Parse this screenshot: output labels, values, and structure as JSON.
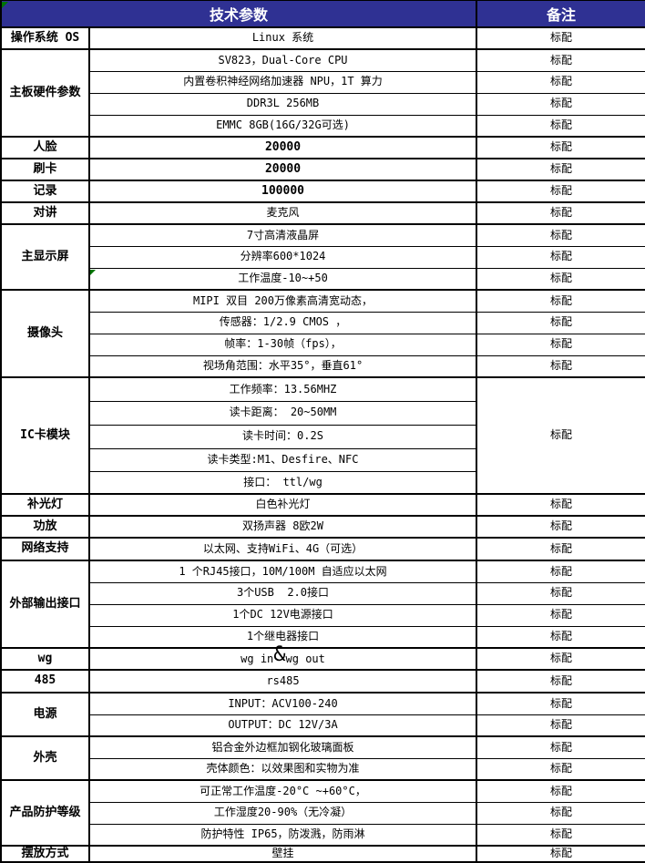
{
  "table": {
    "header": {
      "tech_params": "技术参数",
      "remark": "备注"
    },
    "sections": [
      {
        "category": "操作系统 OS",
        "rows": [
          {
            "value": "Linux 系统",
            "remark": "标配"
          }
        ]
      },
      {
        "category": "主板硬件参数",
        "rows": [
          {
            "value": "SV823，Dual-Core CPU",
            "remark": "标配"
          },
          {
            "value": "内置卷积神经网络加速器 NPU，1T 算力",
            "remark": "标配"
          },
          {
            "value": "DDR3L 256MB",
            "remark": "标配"
          },
          {
            "value": "EMMC 8GB(16G/32G可选)",
            "remark": "标配"
          }
        ]
      },
      {
        "category": "人脸",
        "rows": [
          {
            "value": "20000",
            "remark": "标配"
          }
        ]
      },
      {
        "category": "刷卡",
        "rows": [
          {
            "value": "20000",
            "remark": "标配"
          }
        ]
      },
      {
        "category": "记录",
        "rows": [
          {
            "value": "100000",
            "remark": "标配"
          }
        ]
      },
      {
        "category": "对讲",
        "rows": [
          {
            "value": "麦克风",
            "remark": "标配"
          }
        ]
      },
      {
        "category": "主显示屏",
        "rows": [
          {
            "value": "7寸高清液晶屏",
            "remark": "标配"
          },
          {
            "value": "分辨率600*1024",
            "remark": "标配"
          },
          {
            "value": "工作温度-10~+50",
            "remark": "标配"
          }
        ]
      },
      {
        "category": "摄像头",
        "rows": [
          {
            "value": "MIPI 双目 200万像素高清宽动态，",
            "remark": "标配"
          },
          {
            "value": "传感器：1/2.9 CMOS ，",
            "remark": "标配"
          },
          {
            "value": "帧率：1-30帧（fps），",
            "remark": "标配"
          },
          {
            "value": "视场角范围：水平35°，垂直61°",
            "remark": "标配"
          }
        ]
      },
      {
        "category": "IC卡模块",
        "merged_remark": true,
        "remark": "标配",
        "rows": [
          {
            "value": "工作频率：13.56MHZ"
          },
          {
            "value": "读卡距离： 20~50MM"
          },
          {
            "value": "读卡时间：0.2S"
          },
          {
            "value": "读卡类型:M1、Desfire、NFC"
          },
          {
            "value": "接口： ttl/wg"
          }
        ]
      },
      {
        "category": "补光灯",
        "rows": [
          {
            "value": "白色补光灯",
            "remark": "标配"
          }
        ]
      },
      {
        "category": "功放",
        "rows": [
          {
            "value": "双扬声器 8欧2W",
            "remark": "标配"
          }
        ]
      },
      {
        "category": "网络支持",
        "rows": [
          {
            "value": "以太网、支持WiFi、4G（可选）",
            "remark": "标配"
          }
        ]
      },
      {
        "category": "外部输出接口",
        "rows": [
          {
            "value": "1 个RJ45接口，10M/100M 自适应以太网",
            "remark": "标配"
          },
          {
            "value": "3个USB  2.0接口",
            "remark": "标配"
          },
          {
            "value": "1个DC 12V电源接口",
            "remark": "标配"
          },
          {
            "value": "1个继电器接口",
            "remark": "标配"
          }
        ]
      },
      {
        "category": "wg",
        "rows": [
          {
            "value": "wg in&wg out",
            "remark": "标配"
          }
        ]
      },
      {
        "category": "485",
        "rows": [
          {
            "value": "rs485",
            "remark": "标配"
          }
        ]
      },
      {
        "category": "电源",
        "rows": [
          {
            "value": "INPUT：ACV100-240",
            "remark": "标配"
          },
          {
            "value": "OUTPUT：DC 12V/3A",
            "remark": "标配"
          }
        ]
      },
      {
        "category": "外壳",
        "rows": [
          {
            "value": "铝合金外边框加钢化玻璃面板",
            "remark": "标配"
          },
          {
            "value": "壳体颜色：以效果图和实物为准",
            "remark": "标配"
          }
        ]
      },
      {
        "category": "产品防护等级",
        "rows": [
          {
            "value": "可正常工作温度-20°C ~+60°C，",
            "remark": "标配"
          },
          {
            "value": "工作湿度20-90%（无冷凝）",
            "remark": "标配"
          },
          {
            "value": "防护特性 IP65，防泼溅，防雨淋",
            "remark": "标配"
          }
        ]
      },
      {
        "category": "摆放方式",
        "rows": [
          {
            "value": "壁挂",
            "remark": "标配"
          }
        ]
      }
    ]
  },
  "icons": {
    "header_error_indicator": "green-triangle",
    "cell_error_indicator": "green-triangle"
  },
  "colors": {
    "header_bg": "#2F3193",
    "header_text": "#FFFFFF",
    "border": "#000000",
    "error_indicator": "#007500"
  }
}
